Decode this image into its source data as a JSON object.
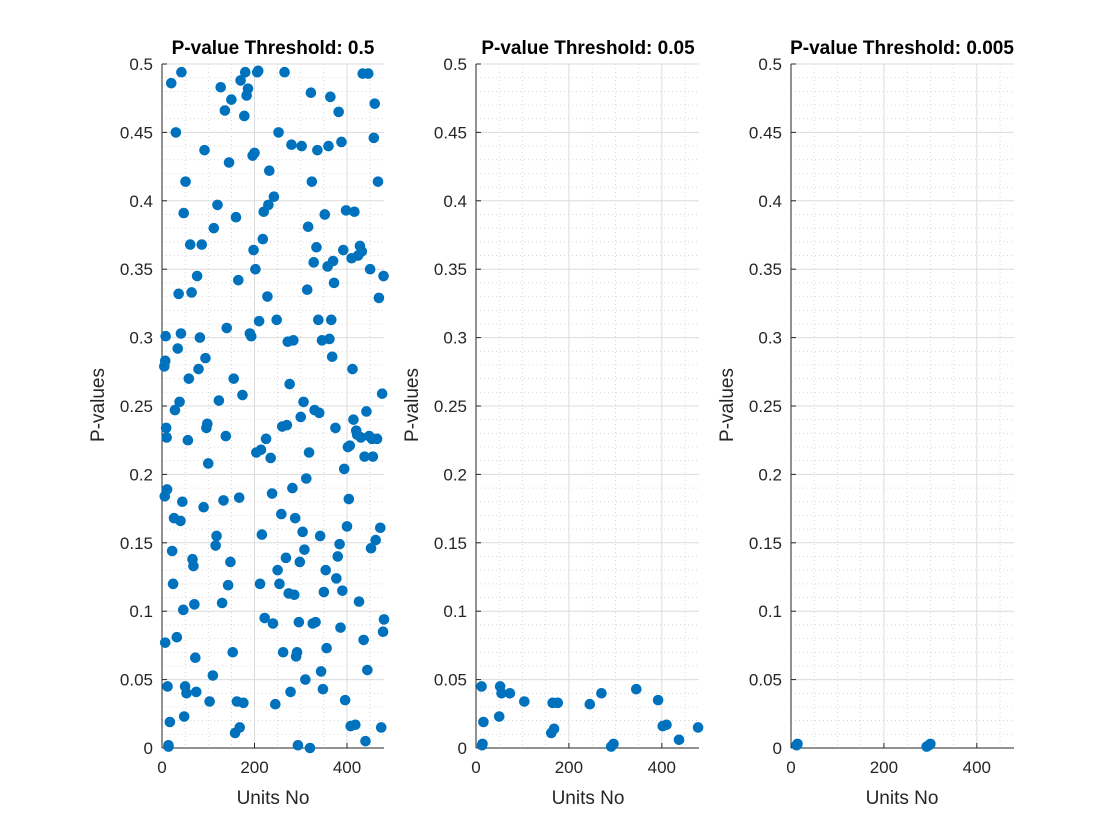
{
  "colors": {
    "marker": "#0072BD",
    "axis": "#262626",
    "grid": "#dcdcdc"
  },
  "chart_data": [
    {
      "type": "scatter",
      "title": "P-value Threshold: 0.5",
      "xlabel": "Units No",
      "ylabel": "P-values",
      "xlim": [
        0,
        480
      ],
      "ylim": [
        0,
        0.5
      ],
      "xticks": [
        0,
        200,
        400
      ],
      "yticks": [
        0,
        0.05,
        0.1,
        0.15,
        0.2,
        0.25,
        0.3,
        0.35,
        0.4,
        0.45,
        0.5
      ],
      "grid": true,
      "points": [
        [
          5,
          0.279
        ],
        [
          7,
          0.283
        ],
        [
          8,
          0.301
        ],
        [
          6,
          0.184
        ],
        [
          7,
          0.077
        ],
        [
          9,
          0.234
        ],
        [
          10,
          0.227
        ],
        [
          11,
          0.189
        ],
        [
          12,
          0.045
        ],
        [
          14,
          0.002
        ],
        [
          14,
          0.001
        ],
        [
          17,
          0.019
        ],
        [
          20,
          0.486
        ],
        [
          22,
          0.144
        ],
        [
          24,
          0.12
        ],
        [
          26,
          0.168
        ],
        [
          28,
          0.247
        ],
        [
          30,
          0.45
        ],
        [
          32,
          0.081
        ],
        [
          34,
          0.292
        ],
        [
          36,
          0.332
        ],
        [
          38,
          0.253
        ],
        [
          40,
          0.166
        ],
        [
          41,
          0.303
        ],
        [
          42,
          0.494
        ],
        [
          44,
          0.18
        ],
        [
          46,
          0.101
        ],
        [
          47,
          0.391
        ],
        [
          48,
          0.023
        ],
        [
          50,
          0.045
        ],
        [
          51,
          0.414
        ],
        [
          53,
          0.04
        ],
        [
          56,
          0.225
        ],
        [
          58,
          0.27
        ],
        [
          61,
          0.368
        ],
        [
          64,
          0.333
        ],
        [
          66,
          0.138
        ],
        [
          68,
          0.133
        ],
        [
          70,
          0.105
        ],
        [
          72,
          0.066
        ],
        [
          74,
          0.041
        ],
        [
          76,
          0.345
        ],
        [
          79,
          0.277
        ],
        [
          82,
          0.3
        ],
        [
          86,
          0.368
        ],
        [
          90,
          0.176
        ],
        [
          92,
          0.437
        ],
        [
          94,
          0.285
        ],
        [
          96,
          0.234
        ],
        [
          98,
          0.237
        ],
        [
          100,
          0.208
        ],
        [
          103,
          0.034
        ],
        [
          110,
          0.053
        ],
        [
          112,
          0.38
        ],
        [
          116,
          0.148
        ],
        [
          118,
          0.155
        ],
        [
          120,
          0.397
        ],
        [
          123,
          0.254
        ],
        [
          127,
          0.483
        ],
        [
          130,
          0.106
        ],
        [
          133,
          0.181
        ],
        [
          136,
          0.466
        ],
        [
          138,
          0.228
        ],
        [
          140,
          0.307
        ],
        [
          143,
          0.119
        ],
        [
          145,
          0.428
        ],
        [
          148,
          0.136
        ],
        [
          150,
          0.474
        ],
        [
          153,
          0.07
        ],
        [
          155,
          0.27
        ],
        [
          158,
          0.011
        ],
        [
          160,
          0.388
        ],
        [
          162,
          0.034
        ],
        [
          165,
          0.342
        ],
        [
          167,
          0.183
        ],
        [
          168,
          0.015
        ],
        [
          170,
          0.488
        ],
        [
          174,
          0.258
        ],
        [
          176,
          0.033
        ],
        [
          178,
          0.462
        ],
        [
          180,
          0.494
        ],
        [
          183,
          0.477
        ],
        [
          186,
          0.482
        ],
        [
          190,
          0.303
        ],
        [
          193,
          0.301
        ],
        [
          196,
          0.433
        ],
        [
          198,
          0.364
        ],
        [
          200,
          0.435
        ],
        [
          202,
          0.35
        ],
        [
          204,
          0.216
        ],
        [
          206,
          0.494
        ],
        [
          208,
          0.495
        ],
        [
          210,
          0.312
        ],
        [
          212,
          0.12
        ],
        [
          214,
          0.218
        ],
        [
          216,
          0.156
        ],
        [
          218,
          0.372
        ],
        [
          220,
          0.392
        ],
        [
          222,
          0.095
        ],
        [
          225,
          0.226
        ],
        [
          228,
          0.33
        ],
        [
          230,
          0.397
        ],
        [
          232,
          0.422
        ],
        [
          235,
          0.212
        ],
        [
          238,
          0.186
        ],
        [
          240,
          0.091
        ],
        [
          242,
          0.403
        ],
        [
          245,
          0.032
        ],
        [
          248,
          0.313
        ],
        [
          250,
          0.13
        ],
        [
          252,
          0.45
        ],
        [
          254,
          0.12
        ],
        [
          258,
          0.171
        ],
        [
          260,
          0.235
        ],
        [
          262,
          0.07
        ],
        [
          265,
          0.494
        ],
        [
          268,
          0.139
        ],
        [
          270,
          0.236
        ],
        [
          272,
          0.297
        ],
        [
          274,
          0.113
        ],
        [
          276,
          0.266
        ],
        [
          278,
          0.041
        ],
        [
          280,
          0.441
        ],
        [
          282,
          0.19
        ],
        [
          284,
          0.298
        ],
        [
          286,
          0.112
        ],
        [
          288,
          0.168
        ],
        [
          290,
          0.067
        ],
        [
          292,
          0.07
        ],
        [
          294,
          0.002
        ],
        [
          296,
          0.092
        ],
        [
          298,
          0.136
        ],
        [
          300,
          0.242
        ],
        [
          302,
          0.44
        ],
        [
          304,
          0.158
        ],
        [
          306,
          0.253
        ],
        [
          308,
          0.145
        ],
        [
          310,
          0.05
        ],
        [
          312,
          0.197
        ],
        [
          314,
          0.335
        ],
        [
          316,
          0.381
        ],
        [
          318,
          0.216
        ],
        [
          320,
          0.0
        ],
        [
          322,
          0.479
        ],
        [
          324,
          0.414
        ],
        [
          326,
          0.091
        ],
        [
          328,
          0.355
        ],
        [
          330,
          0.247
        ],
        [
          332,
          0.092
        ],
        [
          334,
          0.366
        ],
        [
          336,
          0.437
        ],
        [
          338,
          0.313
        ],
        [
          340,
          0.245
        ],
        [
          342,
          0.155
        ],
        [
          344,
          0.056
        ],
        [
          346,
          0.298
        ],
        [
          348,
          0.043
        ],
        [
          350,
          0.114
        ],
        [
          352,
          0.39
        ],
        [
          354,
          0.13
        ],
        [
          356,
          0.073
        ],
        [
          358,
          0.352
        ],
        [
          360,
          0.44
        ],
        [
          362,
          0.299
        ],
        [
          364,
          0.476
        ],
        [
          366,
          0.313
        ],
        [
          368,
          0.286
        ],
        [
          370,
          0.356
        ],
        [
          372,
          0.34
        ],
        [
          375,
          0.234
        ],
        [
          377,
          0.124
        ],
        [
          380,
          0.14
        ],
        [
          382,
          0.465
        ],
        [
          384,
          0.149
        ],
        [
          386,
          0.088
        ],
        [
          388,
          0.443
        ],
        [
          390,
          0.115
        ],
        [
          392,
          0.364
        ],
        [
          394,
          0.204
        ],
        [
          396,
          0.035
        ],
        [
          398,
          0.393
        ],
        [
          400,
          0.162
        ],
        [
          402,
          0.22
        ],
        [
          404,
          0.182
        ],
        [
          406,
          0.221
        ],
        [
          408,
          0.016
        ],
        [
          410,
          0.358
        ],
        [
          412,
          0.277
        ],
        [
          414,
          0.24
        ],
        [
          416,
          0.392
        ],
        [
          418,
          0.017
        ],
        [
          420,
          0.232
        ],
        [
          422,
          0.229
        ],
        [
          424,
          0.36
        ],
        [
          426,
          0.107
        ],
        [
          428,
          0.367
        ],
        [
          430,
          0.227
        ],
        [
          432,
          0.363
        ],
        [
          434,
          0.493
        ],
        [
          436,
          0.079
        ],
        [
          438,
          0.213
        ],
        [
          440,
          0.005
        ],
        [
          442,
          0.246
        ],
        [
          444,
          0.057
        ],
        [
          446,
          0.493
        ],
        [
          448,
          0.228
        ],
        [
          450,
          0.35
        ],
        [
          452,
          0.146
        ],
        [
          454,
          0.226
        ],
        [
          456,
          0.213
        ],
        [
          458,
          0.446
        ],
        [
          460,
          0.471
        ],
        [
          462,
          0.152
        ],
        [
          465,
          0.226
        ],
        [
          467,
          0.414
        ],
        [
          469,
          0.329
        ],
        [
          472,
          0.161
        ],
        [
          474,
          0.015
        ],
        [
          476,
          0.259
        ],
        [
          478,
          0.085
        ],
        [
          479,
          0.345
        ],
        [
          480,
          0.094
        ]
      ]
    },
    {
      "type": "scatter",
      "title": "P-value Threshold: 0.05",
      "xlabel": "Units No",
      "ylabel": "P-values",
      "xlim": [
        0,
        480
      ],
      "ylim": [
        0,
        0.5
      ],
      "xticks": [
        0,
        200,
        400
      ],
      "yticks": [
        0,
        0.05,
        0.1,
        0.15,
        0.2,
        0.25,
        0.3,
        0.35,
        0.4,
        0.45,
        0.5
      ],
      "grid": true,
      "points": [
        [
          12,
          0.045
        ],
        [
          13,
          0.002
        ],
        [
          14,
          0.003
        ],
        [
          16,
          0.019
        ],
        [
          50,
          0.023
        ],
        [
          52,
          0.045
        ],
        [
          55,
          0.04
        ],
        [
          73,
          0.04
        ],
        [
          104,
          0.034
        ],
        [
          162,
          0.011
        ],
        [
          168,
          0.014
        ],
        [
          165,
          0.033
        ],
        [
          176,
          0.033
        ],
        [
          245,
          0.032
        ],
        [
          270,
          0.04
        ],
        [
          291,
          0.001
        ],
        [
          296,
          0.003
        ],
        [
          345,
          0.043
        ],
        [
          392,
          0.035
        ],
        [
          402,
          0.016
        ],
        [
          410,
          0.017
        ],
        [
          437,
          0.006
        ],
        [
          478,
          0.015
        ]
      ]
    },
    {
      "type": "scatter",
      "title": "P-value Threshold: 0.005",
      "xlabel": "Units No",
      "ylabel": "P-values",
      "xlim": [
        0,
        480
      ],
      "ylim": [
        0,
        0.5
      ],
      "xticks": [
        0,
        200,
        400
      ],
      "yticks": [
        0,
        0.05,
        0.1,
        0.15,
        0.2,
        0.25,
        0.3,
        0.35,
        0.4,
        0.45,
        0.5
      ],
      "grid": true,
      "points": [
        [
          12,
          0.002
        ],
        [
          14,
          0.003
        ],
        [
          292,
          0.001
        ],
        [
          297,
          0.002
        ],
        [
          300,
          0.003
        ]
      ]
    }
  ]
}
